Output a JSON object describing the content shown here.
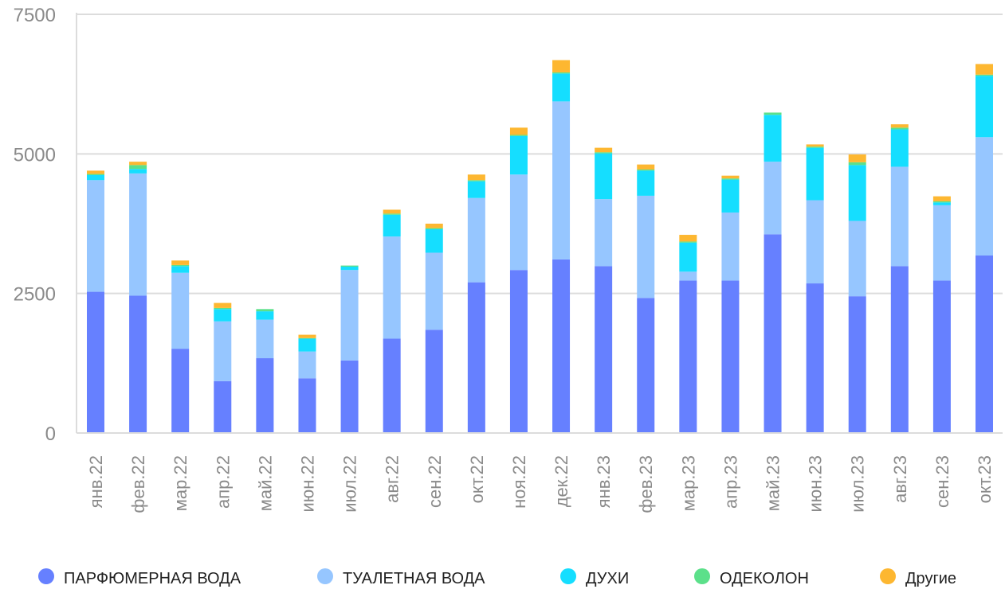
{
  "chart_data": {
    "type": "bar",
    "stacked": true,
    "categories": [
      "янв.22",
      "фев.22",
      "мар.22",
      "апр.22",
      "май.22",
      "июн.22",
      "июл.22",
      "авг.22",
      "сен.22",
      "окт.22",
      "ноя.22",
      "дек.22",
      "янв.23",
      "фев.23",
      "мар.23",
      "апр.23",
      "май.23",
      "июн.23",
      "июл.23",
      "авг.23",
      "сен.23",
      "окт.23"
    ],
    "series": [
      {
        "name": "ПАРФЮМЕРНАЯ ВОДА",
        "color": "#6680FF",
        "values": [
          2530,
          2460,
          1510,
          930,
          1340,
          980,
          1300,
          1690,
          1850,
          2700,
          2920,
          3110,
          2990,
          2420,
          2730,
          2730,
          3560,
          2680,
          2450,
          2990,
          2730,
          3180
        ]
      },
      {
        "name": "ТУАЛЕТНАЯ ВОДА",
        "color": "#96C6FF",
        "values": [
          2000,
          2190,
          1360,
          1070,
          690,
          480,
          1620,
          1830,
          1380,
          1510,
          1710,
          2830,
          1200,
          1830,
          160,
          1220,
          1300,
          1490,
          1350,
          1780,
          1350,
          2120
        ]
      },
      {
        "name": "ДУХИ",
        "color": "#15DEFF",
        "values": [
          90,
          80,
          120,
          220,
          150,
          230,
          60,
          390,
          420,
          300,
          690,
          500,
          820,
          450,
          520,
          590,
          840,
          940,
          1000,
          670,
          50,
          1100
        ]
      },
      {
        "name": "ОДЕКОЛОН",
        "color": "#5CE08A",
        "values": [
          20,
          70,
          20,
          20,
          40,
          10,
          20,
          20,
          20,
          20,
          20,
          20,
          20,
          20,
          20,
          20,
          40,
          20,
          50,
          30,
          20,
          20
        ]
      },
      {
        "name": "Другие",
        "color": "#FDB731",
        "values": [
          60,
          60,
          80,
          90,
          0,
          60,
          0,
          70,
          80,
          100,
          130,
          220,
          80,
          90,
          120,
          50,
          0,
          40,
          140,
          60,
          90,
          190
        ]
      }
    ],
    "ylim": [
      0,
      7500
    ],
    "yticks": [
      0,
      2500,
      5000,
      7500
    ],
    "ytick_labels": [
      "0",
      "2500",
      "5000",
      "7500"
    ],
    "grid": true,
    "legend_position": "bottom",
    "title": "",
    "xlabel": "",
    "ylabel": ""
  }
}
